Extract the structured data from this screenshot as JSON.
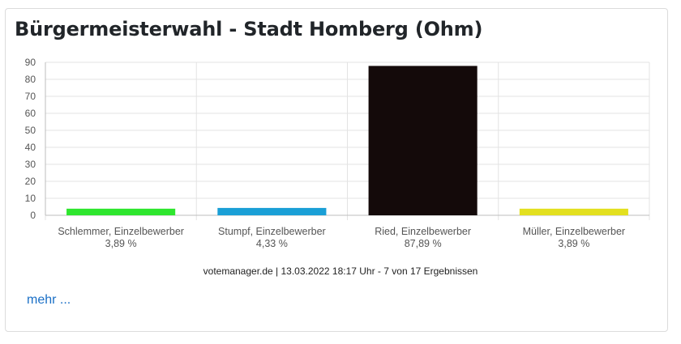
{
  "card": {
    "title": "Bürgermeisterwahl - Stadt Homberg (Ohm)",
    "footer": "votemanager.de | 13.03.2022 18:17 Uhr - 7 von 17 Ergebnissen",
    "more_link": "mehr ..."
  },
  "chart_data": {
    "type": "bar",
    "title": "",
    "xlabel": "",
    "ylabel": "",
    "ylim": [
      0,
      90
    ],
    "yticks": [
      0,
      10,
      20,
      30,
      40,
      50,
      60,
      70,
      80,
      90
    ],
    "grid": true,
    "categories": [
      "Schlemmer, Einzelbewerber",
      "Stumpf, Einzelbewerber",
      "Ried, Einzelbewerber",
      "Müller, Einzelbewerber"
    ],
    "values": [
      3.89,
      4.33,
      87.89,
      3.89
    ],
    "value_labels": [
      "3,89 %",
      "4,33 %",
      "87,89 %",
      "3,89 %"
    ],
    "colors": [
      "#2ee62e",
      "#1a9fd6",
      "#140a0a",
      "#e3e01f"
    ]
  }
}
